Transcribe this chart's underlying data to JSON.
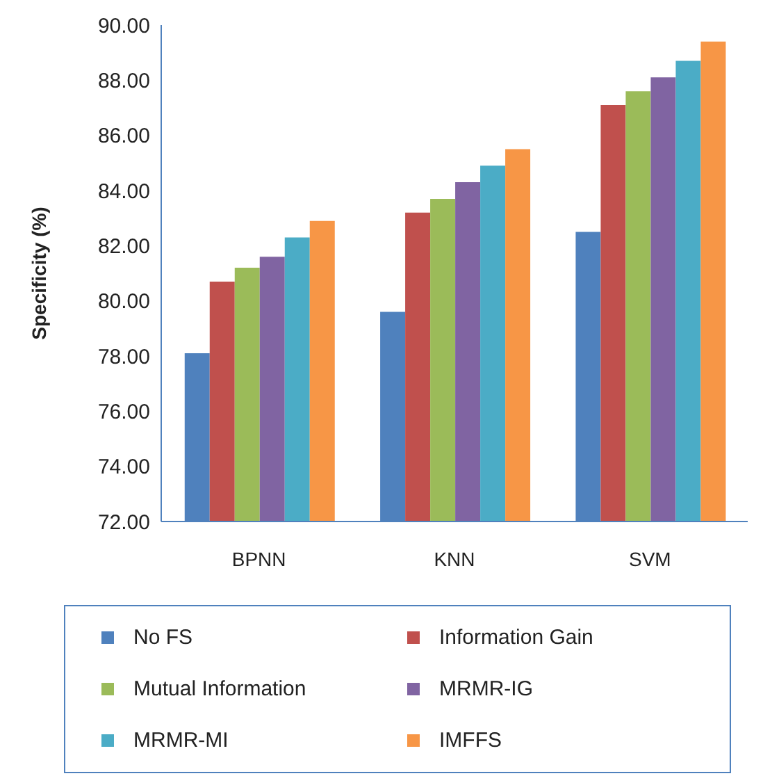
{
  "chart_data": {
    "type": "bar",
    "ylabel": "Specificity (%)",
    "categories": [
      "BPNN",
      "KNN",
      "SVM"
    ],
    "series": [
      {
        "name": "No FS",
        "color": "#4f81bd",
        "values": [
          78.1,
          79.6,
          82.5
        ]
      },
      {
        "name": "Information Gain",
        "color": "#c0504d",
        "values": [
          80.7,
          83.2,
          87.1
        ]
      },
      {
        "name": "Mutual Information",
        "color": "#9bbb59",
        "values": [
          81.2,
          83.7,
          87.6
        ]
      },
      {
        "name": "MRMR-IG",
        "color": "#8064a2",
        "values": [
          81.6,
          84.3,
          88.1
        ]
      },
      {
        "name": "MRMR-MI",
        "color": "#4bacc6",
        "values": [
          82.3,
          84.9,
          88.7
        ]
      },
      {
        "name": "IMFFS",
        "color": "#f79646",
        "values": [
          82.9,
          85.5,
          89.4
        ]
      }
    ],
    "ylim": [
      72,
      90
    ],
    "yticks": [
      {
        "value": 72,
        "label": "72.00"
      },
      {
        "value": 74,
        "label": "74.00"
      },
      {
        "value": 76,
        "label": "76.00"
      },
      {
        "value": 78,
        "label": "78.00"
      },
      {
        "value": 80,
        "label": "80.00"
      },
      {
        "value": 82,
        "label": "82.00"
      },
      {
        "value": 84,
        "label": "84.00"
      },
      {
        "value": 86,
        "label": "86.00"
      },
      {
        "value": 88,
        "label": "88.00"
      },
      {
        "value": 90,
        "label": "90.00"
      }
    ],
    "grid": false,
    "legend": "bottom"
  }
}
